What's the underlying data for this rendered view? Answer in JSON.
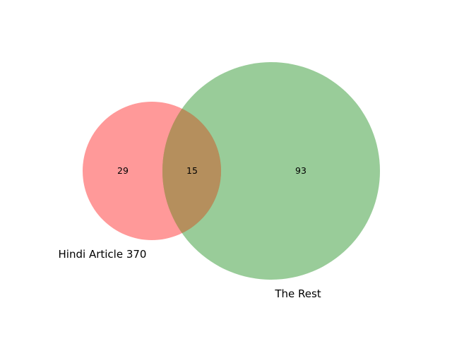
{
  "diagram": {
    "type": "venn2",
    "sets": [
      {
        "name": "Hindi Article 370",
        "color": "#ff0000",
        "only_count": "29"
      },
      {
        "name": "The Rest",
        "color": "#008000",
        "only_count": "93"
      }
    ],
    "intersection": {
      "count": "15",
      "color": "#c08f5e"
    },
    "fill_opacity": 0.4
  }
}
